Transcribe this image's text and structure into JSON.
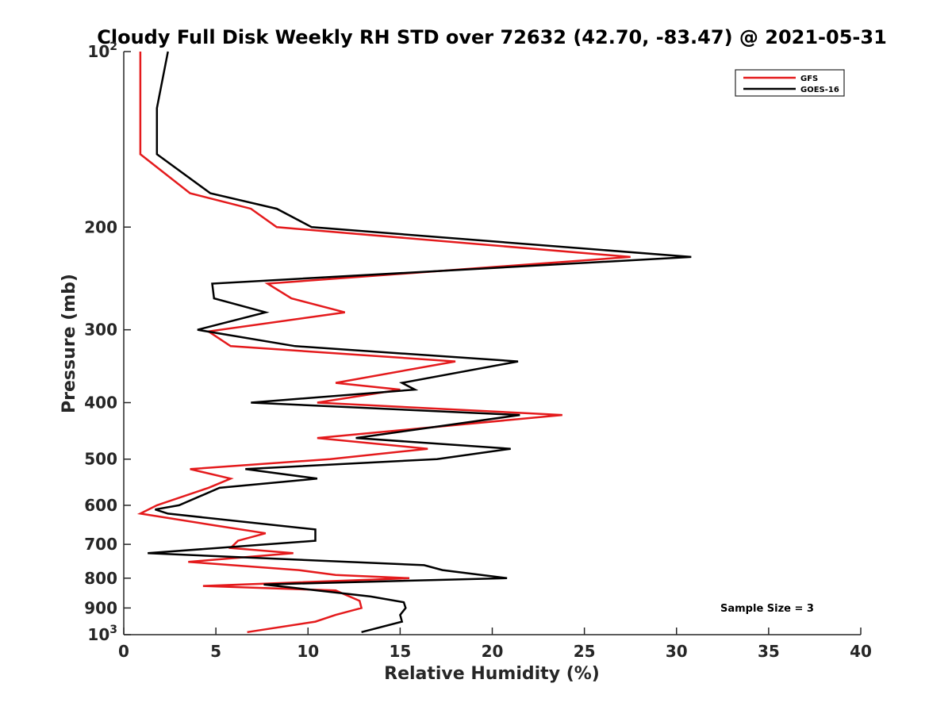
{
  "chart_data": {
    "type": "line",
    "title": "Cloudy Full Disk Weekly RH STD over 72632 (42.70, -83.47) @ 2021-05-31",
    "xlabel": "Relative Humidity (%)",
    "ylabel": "Pressure (mb)",
    "xlim": [
      0,
      40
    ],
    "ylim": [
      100,
      1000
    ],
    "y_scale": "log",
    "y_reversed": true,
    "grid": false,
    "legend_position": "top-right",
    "x_ticks": [
      0,
      5,
      10,
      15,
      20,
      25,
      30,
      35,
      40
    ],
    "y_ticks": [
      {
        "value": 100,
        "label": "10",
        "sup": "2"
      },
      {
        "value": 200,
        "label": "200",
        "sup": ""
      },
      {
        "value": 300,
        "label": "300",
        "sup": ""
      },
      {
        "value": 400,
        "label": "400",
        "sup": ""
      },
      {
        "value": 500,
        "label": "500",
        "sup": ""
      },
      {
        "value": 600,
        "label": "600",
        "sup": ""
      },
      {
        "value": 700,
        "label": "700",
        "sup": ""
      },
      {
        "value": 800,
        "label": "800",
        "sup": ""
      },
      {
        "value": 900,
        "label": "900",
        "sup": ""
      },
      {
        "value": 1000,
        "label": "10",
        "sup": "3"
      }
    ],
    "series": [
      {
        "name": "GFS",
        "color": "#e41a1c",
        "points": [
          [
            0.9,
            100
          ],
          [
            0.9,
            125
          ],
          [
            0.9,
            150
          ],
          [
            3.6,
            175
          ],
          [
            6.9,
            186
          ],
          [
            8.3,
            200
          ],
          [
            27.5,
            225
          ],
          [
            7.8,
            250
          ],
          [
            9.1,
            265
          ],
          [
            12.0,
            280
          ],
          [
            4.6,
            302
          ],
          [
            5.8,
            320
          ],
          [
            18.0,
            340
          ],
          [
            11.5,
            370
          ],
          [
            15.0,
            380
          ],
          [
            10.5,
            400
          ],
          [
            23.8,
            420
          ],
          [
            10.5,
            460
          ],
          [
            16.5,
            480
          ],
          [
            11.2,
            500
          ],
          [
            3.6,
            520
          ],
          [
            5.8,
            540
          ],
          [
            4.6,
            560
          ],
          [
            1.8,
            600
          ],
          [
            0.9,
            620
          ],
          [
            5.0,
            650
          ],
          [
            7.7,
            670
          ],
          [
            6.2,
            690
          ],
          [
            5.8,
            710
          ],
          [
            9.2,
            725
          ],
          [
            3.5,
            750
          ],
          [
            9.5,
            775
          ],
          [
            11.5,
            790
          ],
          [
            15.5,
            800
          ],
          [
            4.3,
            825
          ],
          [
            11.5,
            840
          ],
          [
            12.8,
            875
          ],
          [
            12.9,
            900
          ],
          [
            11.5,
            925
          ],
          [
            10.4,
            950
          ],
          [
            6.7,
            990
          ]
        ]
      },
      {
        "name": "GOES-16",
        "color": "#000000",
        "points": [
          [
            2.4,
            100
          ],
          [
            1.8,
            125
          ],
          [
            1.8,
            150
          ],
          [
            4.7,
            175
          ],
          [
            8.3,
            186
          ],
          [
            10.2,
            200
          ],
          [
            30.8,
            225
          ],
          [
            4.8,
            250
          ],
          [
            4.9,
            265
          ],
          [
            7.7,
            280
          ],
          [
            4.0,
            300
          ],
          [
            9.3,
            320
          ],
          [
            21.4,
            340
          ],
          [
            15.1,
            370
          ],
          [
            15.8,
            380
          ],
          [
            6.9,
            400
          ],
          [
            21.5,
            420
          ],
          [
            12.6,
            460
          ],
          [
            21.0,
            480
          ],
          [
            17.0,
            500
          ],
          [
            6.6,
            520
          ],
          [
            10.5,
            540
          ],
          [
            5.2,
            560
          ],
          [
            3.0,
            600
          ],
          [
            1.7,
            610
          ],
          [
            2.4,
            620
          ],
          [
            10.4,
            660
          ],
          [
            10.4,
            690
          ],
          [
            1.3,
            725
          ],
          [
            16.3,
            760
          ],
          [
            17.3,
            775
          ],
          [
            20.8,
            800
          ],
          [
            7.6,
            820
          ],
          [
            13.4,
            860
          ],
          [
            15.2,
            880
          ],
          [
            15.3,
            900
          ],
          [
            15.0,
            925
          ],
          [
            15.1,
            950
          ],
          [
            12.9,
            990
          ]
        ]
      }
    ],
    "annotation": "Sample Size = 3"
  }
}
